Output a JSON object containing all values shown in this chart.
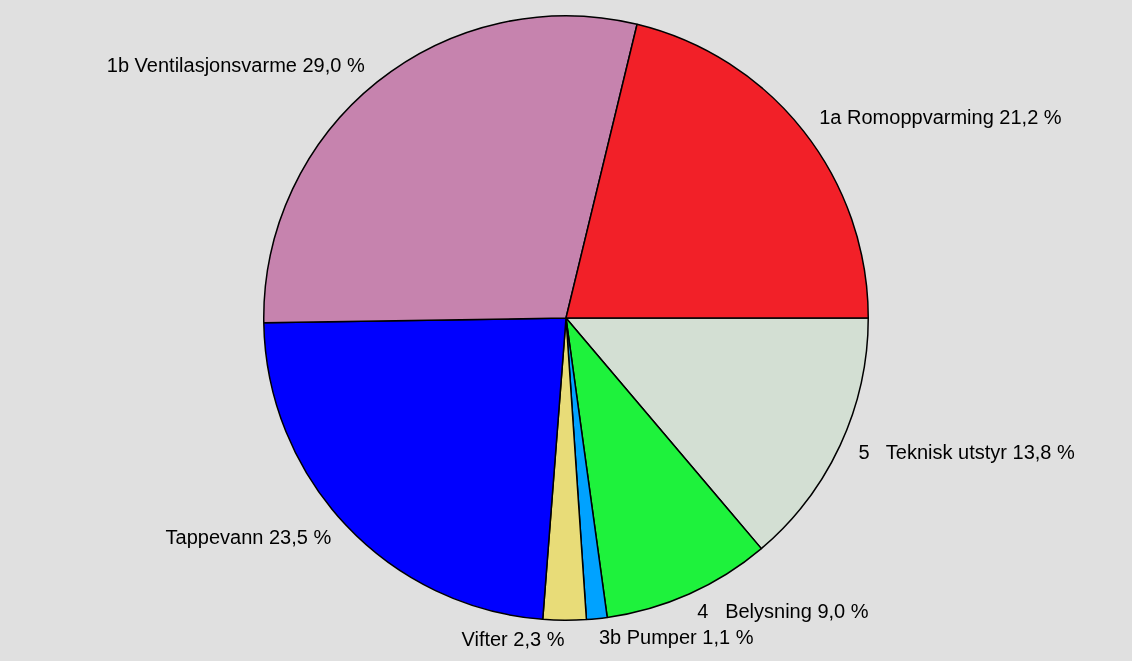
{
  "chart_data": {
    "type": "pie",
    "categories": [
      "5   Teknisk utstyr",
      "4   Belysning",
      "3b Pumper",
      "Vifter",
      "Tappevann",
      "1b Ventilasjonsvarme",
      "1a Romoppvarming"
    ],
    "values": [
      13.8,
      9.0,
      1.1,
      2.3,
      23.5,
      29.0,
      21.2
    ],
    "value_labels": [
      "13,8 %",
      "9,0 %",
      "1,1 %",
      "2,3 %",
      "23,5 %",
      "29,0 %",
      "21,2 %"
    ],
    "colors": [
      "#d3dfd3",
      "#1ef23c",
      "#00a2ff",
      "#e8dc78",
      "#0000ff",
      "#c683ae",
      "#f22028"
    ],
    "legend": false
  }
}
